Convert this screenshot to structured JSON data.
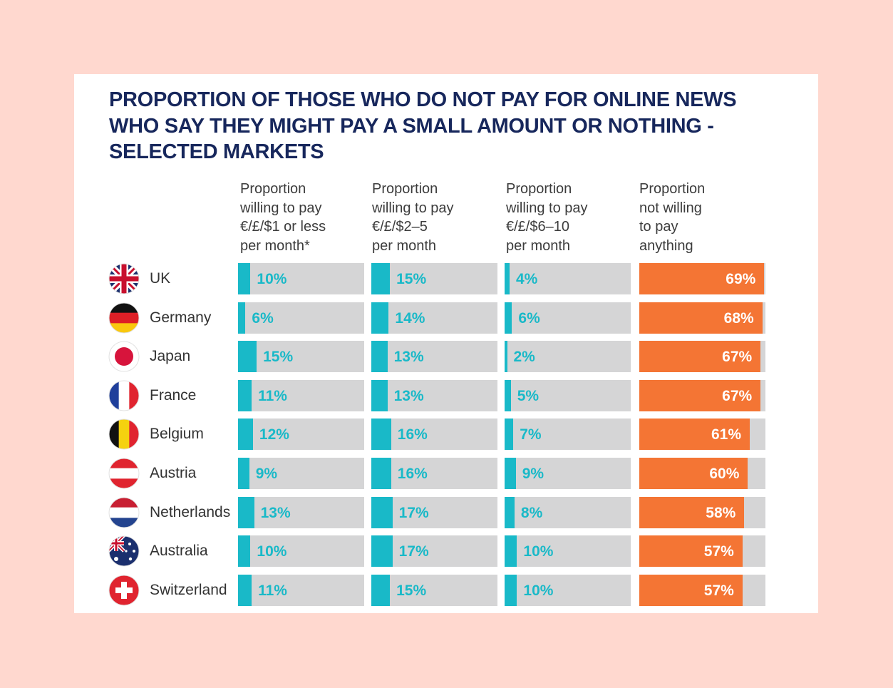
{
  "chart_data": {
    "type": "bar",
    "title": "PROPORTION OF THOSE WHO DO NOT PAY FOR ONLINE NEWS WHO SAY THEY MIGHT PAY A SMALL AMOUNT OR NOTHING - SELECTED MARKETS",
    "categories": [
      "UK",
      "Germany",
      "Japan",
      "France",
      "Belgium",
      "Austria",
      "Netherlands",
      "Australia",
      "Switzerland"
    ],
    "series": [
      {
        "name": "Proportion willing to pay €/£/$1 or less per month*",
        "header_lines": "Proportion\nwilling to pay\n€/£/$1 or less\nper month*",
        "labels": [
          "10%",
          "6%",
          "15%",
          "11%",
          "12%",
          "9%",
          "13%",
          "10%",
          "11%"
        ],
        "values": [
          10,
          6,
          15,
          11,
          12,
          9,
          13,
          10,
          11
        ]
      },
      {
        "name": "Proportion willing to pay €/£/$2–5 per month",
        "header_lines": "Proportion\nwilling to pay\n€/£/$2–5\nper month",
        "labels": [
          "15%",
          "14%",
          "13%",
          "13%",
          "16%",
          "16%",
          "17%",
          "17%",
          "15%"
        ],
        "values": [
          15,
          14,
          13,
          13,
          16,
          16,
          17,
          17,
          15
        ]
      },
      {
        "name": "Proportion willing to pay €/£/$6–10 per month",
        "header_lines": "Proportion\nwilling to pay\n€/£/$6–10\nper month",
        "labels": [
          "4%",
          "6%",
          "2%",
          "5%",
          "7%",
          "9%",
          "8%",
          "10%",
          "10%"
        ],
        "values": [
          4,
          6,
          2,
          5,
          7,
          9,
          8,
          10,
          10
        ]
      },
      {
        "name": "Proportion not willing to pay anything",
        "header_lines": "Proportion\nnot willing\nto pay\nanything",
        "labels": [
          "69%",
          "68%",
          "67%",
          "67%",
          "61%",
          "60%",
          "58%",
          "57%",
          "57%"
        ],
        "values": [
          69,
          68,
          67,
          67,
          61,
          60,
          58,
          57,
          57
        ]
      }
    ],
    "xlim": [
      0,
      70
    ],
    "colors": {
      "paid": "#19b9c8",
      "not_paid": "#f47534",
      "track": "#d5d5d6",
      "title": "#17275c",
      "background": "#ffd8cf"
    }
  },
  "flags": [
    "uk-flag-icon",
    "germany-flag-icon",
    "japan-flag-icon",
    "france-flag-icon",
    "belgium-flag-icon",
    "austria-flag-icon",
    "netherlands-flag-icon",
    "australia-flag-icon",
    "switzerland-flag-icon"
  ]
}
